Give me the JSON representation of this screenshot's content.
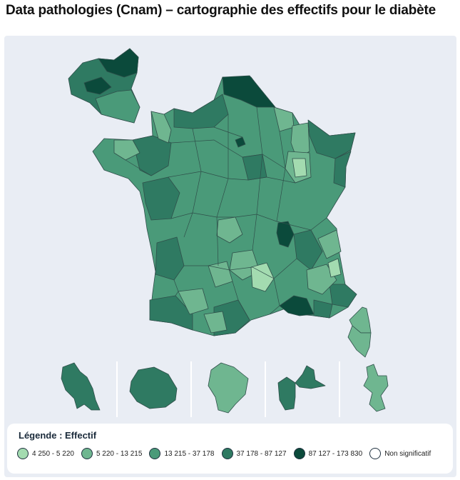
{
  "title": "Data pathologies (Cnam) – cartographie des effectifs pour le diabète",
  "legend": {
    "title": "Légende : Effectif",
    "items": [
      {
        "label": "4 250 - 5 220",
        "color": "#a3dbb0"
      },
      {
        "label": "5 220 - 13 215",
        "color": "#6fb690"
      },
      {
        "label": "13 215 - 37 178",
        "color": "#4a9a79"
      },
      {
        "label": "37 178 - 87 127",
        "color": "#2f7a62"
      },
      {
        "label": "87 127 - 173 830",
        "color": "#0b4a3b"
      },
      {
        "label": "Non significatif",
        "color": "#ffffff"
      }
    ]
  },
  "colors": {
    "c1": "#a3dbb0",
    "c2": "#6fb690",
    "c3": "#4a9a79",
    "c4": "#2f7a62",
    "c5": "#0b4a3b",
    "background": "#e9edf4"
  }
}
